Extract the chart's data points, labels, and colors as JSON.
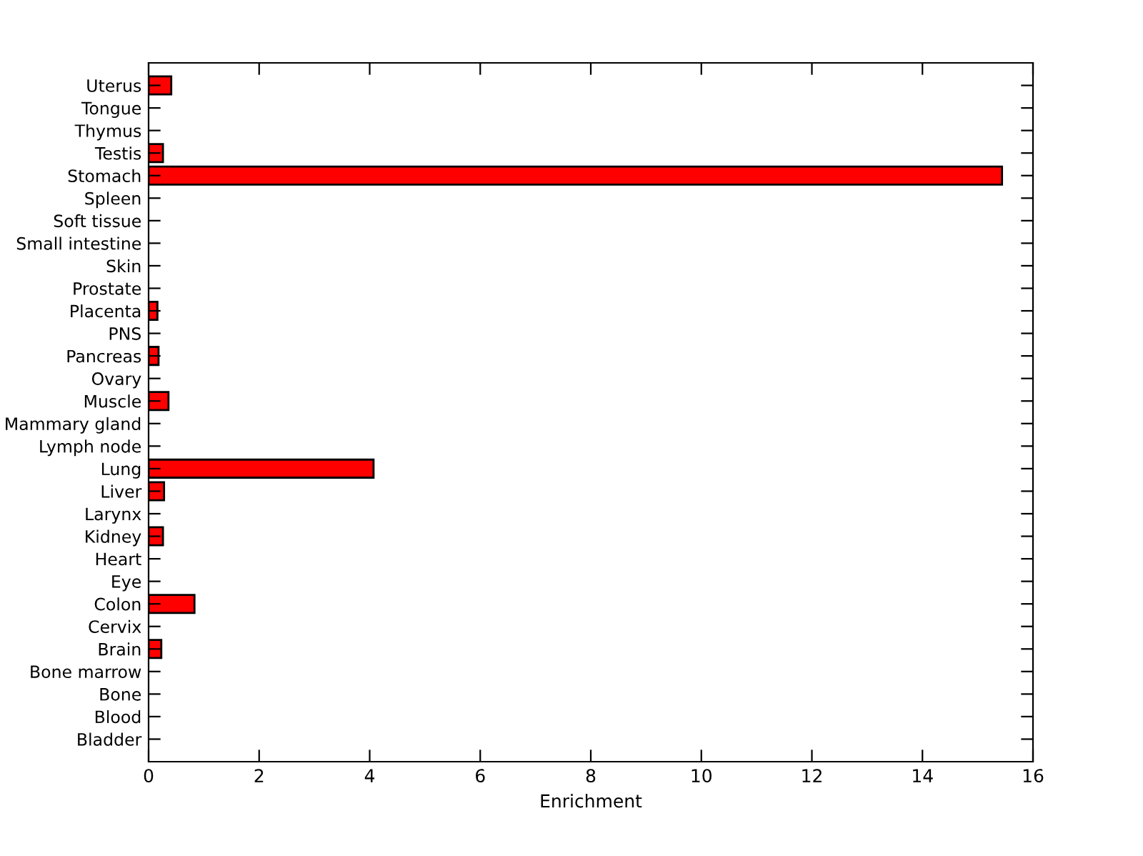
{
  "chart_data": {
    "type": "bar",
    "orientation": "horizontal",
    "xlabel": "Enrichment",
    "categories": [
      "Uterus",
      "Tongue",
      "Thymus",
      "Testis",
      "Stomach",
      "Spleen",
      "Soft tissue",
      "Small intestine",
      "Skin",
      "Prostate",
      "Placenta",
      "PNS",
      "Pancreas",
      "Ovary",
      "Muscle",
      "Mammary gland",
      "Lymph node",
      "Lung",
      "Liver",
      "Larynx",
      "Kidney",
      "Heart",
      "Eye",
      "Colon",
      "Cervix",
      "Brain",
      "Bone marrow",
      "Bone",
      "Blood",
      "Bladder"
    ],
    "values": [
      0.41,
      0,
      0,
      0.26,
      15.44,
      0,
      0,
      0,
      0,
      0,
      0.16,
      0,
      0.18,
      0,
      0.36,
      0,
      0,
      4.07,
      0.28,
      0,
      0.26,
      0,
      0,
      0.83,
      0,
      0.23,
      0,
      0,
      0,
      0
    ],
    "color": "#ff0000",
    "xlim": [
      0,
      16
    ],
    "xticks": [
      0,
      2,
      4,
      6,
      8,
      10,
      12,
      14,
      16
    ],
    "grid": false
  }
}
